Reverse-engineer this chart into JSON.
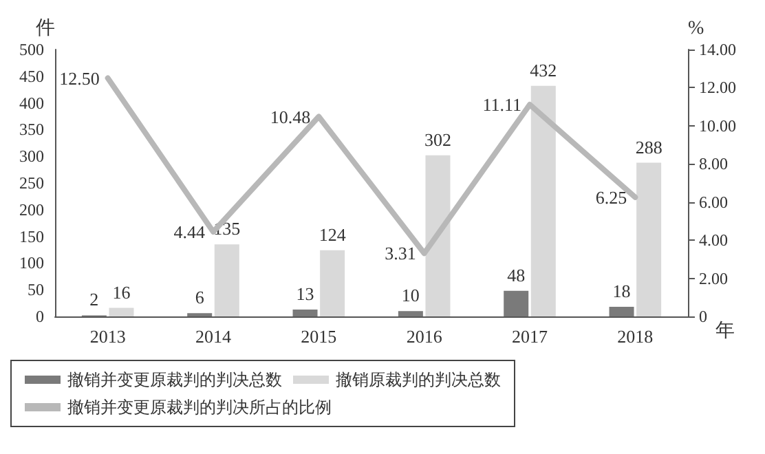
{
  "chart_data": {
    "type": "bar",
    "ylabel": "件",
    "y2label": "%",
    "xlabel": "年",
    "categories": [
      "2013",
      "2014",
      "2015",
      "2016",
      "2017",
      "2018"
    ],
    "series": [
      {
        "name": "撤销并变更原裁判的判决总数",
        "color": "#7a7a7a",
        "values": [
          2,
          6,
          13,
          10,
          48,
          18
        ]
      },
      {
        "name": "撤销原裁判的判决总数",
        "color": "#d9d9d9",
        "values": [
          16,
          135,
          124,
          302,
          432,
          288
        ]
      },
      {
        "name": "撤销并变更原裁判的判决所占的比例",
        "type": "line",
        "axis": "y2",
        "color": "#b8b8b8",
        "values": [
          12.5,
          4.44,
          10.48,
          3.31,
          11.11,
          6.25
        ],
        "value_labels": [
          "12.50",
          "4.44",
          "10.48",
          "3.31",
          "11.11",
          "6.25"
        ]
      }
    ],
    "data_labels": true,
    "ylim": [
      0,
      500
    ],
    "yticks": [
      0,
      50,
      100,
      150,
      200,
      250,
      300,
      350,
      400,
      450,
      500
    ],
    "y2lim": [
      0,
      14
    ],
    "y2ticks": [
      0,
      {
        "value": 2,
        "label": "2.00"
      },
      {
        "value": 4,
        "label": "4.00"
      },
      {
        "value": 6,
        "label": "6.00"
      },
      {
        "value": 8,
        "label": "8.00"
      },
      {
        "value": 10,
        "label": "10.00"
      },
      {
        "value": 12,
        "label": "12.00"
      },
      {
        "value": 14,
        "label": "14.00"
      }
    ],
    "grid": false,
    "legend": "bottom",
    "marker": "none",
    "line_style": "solid"
  }
}
